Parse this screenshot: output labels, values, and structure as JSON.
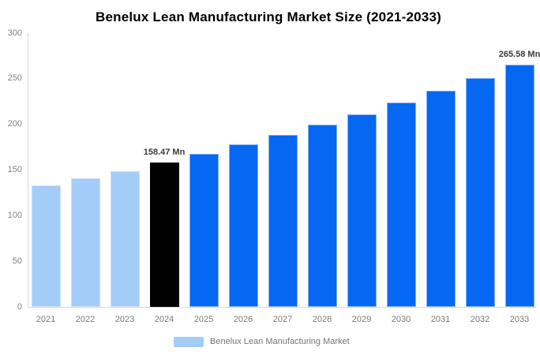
{
  "chart_data": {
    "type": "bar",
    "title": "Benelux Lean Manufacturing Market Size (2021-2033)",
    "xlabel": "",
    "ylabel": "",
    "categories": [
      "2021",
      "2022",
      "2023",
      "2024",
      "2025",
      "2026",
      "2027",
      "2028",
      "2029",
      "2030",
      "2031",
      "2032",
      "2033"
    ],
    "values": [
      133,
      141,
      149,
      158.47,
      167.8,
      177.7,
      188.2,
      199.4,
      211.2,
      223.6,
      236.8,
      250.8,
      265.58
    ],
    "unit": "Mn",
    "ylim": [
      0,
      300
    ],
    "yticks": [
      0,
      50,
      100,
      150,
      200,
      250,
      300
    ],
    "grid": false,
    "legend_position": "bottom",
    "data_labels": [
      {
        "year": "2024",
        "text": "158.47 Mn"
      },
      {
        "year": "2033",
        "text": "265.58 Mn"
      }
    ],
    "bar_colors": [
      "#a4ccf8",
      "#a4ccf8",
      "#a4ccf8",
      "#000000",
      "#0667f2",
      "#0667f2",
      "#0667f2",
      "#0667f2",
      "#0667f2",
      "#0667f2",
      "#0667f2",
      "#0667f2",
      "#0667f2"
    ],
    "bar_border_colors": [
      "#c9e1fb",
      "#c9e1fb",
      "#c9e1fb",
      "#000000",
      "#7fb2f7",
      "#7fb2f7",
      "#7fb2f7",
      "#7fb2f7",
      "#7fb2f7",
      "#7fb2f7",
      "#7fb2f7",
      "#7fb2f7",
      "#7fb2f7"
    ],
    "legend": {
      "label": "Benelux Lean Manufacturing Market",
      "swatch_color": "#a4ccf8"
    },
    "colors": {
      "historical_bar": "#a4ccf8",
      "highlight_bar": "#000000",
      "forecast_bar": "#0667f2",
      "axis_line": "#d9d9d9",
      "tick_text": "#808080",
      "value_label_text": "#3a3a3a",
      "legend_text": "#757575",
      "title_text": "#000000",
      "background": "#ffffff"
    }
  }
}
